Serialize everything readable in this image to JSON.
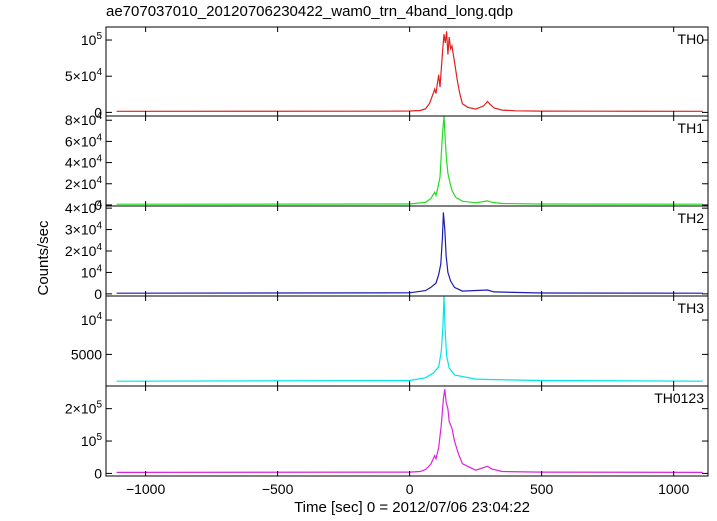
{
  "chart_data": {
    "type": "line",
    "title": "ae707037010_20120706230422_wam0_trn_4band_long.qdp",
    "xlabel": "Time [sec] 0 = 2012/07/06 23:04:22",
    "ylabel": "Counts/sec",
    "xlim": [
      -1150,
      1130
    ],
    "x_ticks": [
      {
        "value": -1000,
        "label": "−1000"
      },
      {
        "value": -500,
        "label": "−500"
      },
      {
        "value": 0,
        "label": "0"
      },
      {
        "value": 500,
        "label": "500"
      },
      {
        "value": 1000,
        "label": "1000"
      }
    ],
    "panels": [
      {
        "name": "TH0",
        "color": "#e02020",
        "ylim": [
          -5000,
          118000
        ],
        "baseline": 1500,
        "y_ticks": [
          {
            "value": 0,
            "label": "0",
            "sup": ""
          },
          {
            "value": 50000,
            "label": "5×10",
            "sup": "4"
          },
          {
            "value": 100000,
            "label": "10",
            "sup": "5"
          }
        ],
        "points": [
          [
            -1110,
            1500
          ],
          [
            -100,
            1600
          ],
          [
            0,
            1900
          ],
          [
            40,
            2600
          ],
          [
            60,
            5000
          ],
          [
            75,
            12000
          ],
          [
            85,
            22000
          ],
          [
            95,
            32000
          ],
          [
            100,
            26000
          ],
          [
            105,
            40000
          ],
          [
            110,
            52000
          ],
          [
            115,
            35000
          ],
          [
            120,
            60000
          ],
          [
            125,
            85000
          ],
          [
            130,
            108000
          ],
          [
            135,
            96000
          ],
          [
            140,
            112000
          ],
          [
            145,
            80000
          ],
          [
            150,
            104000
          ],
          [
            155,
            88000
          ],
          [
            160,
            92000
          ],
          [
            170,
            70000
          ],
          [
            180,
            45000
          ],
          [
            190,
            26000
          ],
          [
            200,
            12000
          ],
          [
            220,
            7000
          ],
          [
            250,
            4500
          ],
          [
            280,
            9000
          ],
          [
            295,
            15000
          ],
          [
            305,
            11000
          ],
          [
            320,
            6000
          ],
          [
            350,
            3200
          ],
          [
            400,
            2200
          ],
          [
            500,
            1800
          ],
          [
            700,
            1600
          ],
          [
            1110,
            1500
          ]
        ]
      },
      {
        "name": "TH1",
        "color": "#22dd22",
        "ylim": [
          -1000,
          84000
        ],
        "baseline": 700,
        "y_ticks": [
          {
            "value": 0,
            "label": "0",
            "sup": ""
          },
          {
            "value": 20000,
            "label": "2×10",
            "sup": "4"
          },
          {
            "value": 40000,
            "label": "4×10",
            "sup": "4"
          },
          {
            "value": 60000,
            "label": "6×10",
            "sup": "4"
          },
          {
            "value": 80000,
            "label": "8×10",
            "sup": "4"
          }
        ],
        "points": [
          [
            -1110,
            700
          ],
          [
            0,
            900
          ],
          [
            60,
            2500
          ],
          [
            80,
            6000
          ],
          [
            95,
            12000
          ],
          [
            100,
            9000
          ],
          [
            108,
            18000
          ],
          [
            115,
            26000
          ],
          [
            120,
            48000
          ],
          [
            125,
            68000
          ],
          [
            130,
            84000
          ],
          [
            135,
            60000
          ],
          [
            140,
            42000
          ],
          [
            145,
            30000
          ],
          [
            150,
            24000
          ],
          [
            160,
            14000
          ],
          [
            175,
            7000
          ],
          [
            200,
            3500
          ],
          [
            250,
            2000
          ],
          [
            295,
            3800
          ],
          [
            310,
            2600
          ],
          [
            350,
            1400
          ],
          [
            500,
            900
          ],
          [
            1110,
            700
          ]
        ]
      },
      {
        "name": "TH2",
        "color": "#1c1cb0",
        "ylim": [
          -1000,
          41000
        ],
        "baseline": 300,
        "y_ticks": [
          {
            "value": 0,
            "label": "0",
            "sup": ""
          },
          {
            "value": 10000,
            "label": "10",
            "sup": "4"
          },
          {
            "value": 20000,
            "label": "2×10",
            "sup": "4"
          },
          {
            "value": 30000,
            "label": "3×10",
            "sup": "4"
          },
          {
            "value": 40000,
            "label": "4×10",
            "sup": "4"
          }
        ],
        "points": [
          [
            -1110,
            300
          ],
          [
            0,
            500
          ],
          [
            60,
            1500
          ],
          [
            80,
            3000
          ],
          [
            100,
            5000
          ],
          [
            110,
            9000
          ],
          [
            118,
            14000
          ],
          [
            124,
            26000
          ],
          [
            128,
            38000
          ],
          [
            133,
            30000
          ],
          [
            138,
            18000
          ],
          [
            145,
            10000
          ],
          [
            155,
            6000
          ],
          [
            170,
            3000
          ],
          [
            200,
            1300
          ],
          [
            295,
            1800
          ],
          [
            320,
            900
          ],
          [
            500,
            400
          ],
          [
            1110,
            300
          ]
        ]
      },
      {
        "name": "TH3",
        "color": "#00e6e6",
        "ylim": [
          400,
          13500
        ],
        "baseline": 1100,
        "y_ticks": [
          {
            "value": 5000,
            "label": "5000",
            "sup": ""
          },
          {
            "value": 10000,
            "label": "10",
            "sup": "4"
          }
        ],
        "points": [
          [
            -1110,
            1100
          ],
          [
            0,
            1200
          ],
          [
            60,
            1600
          ],
          [
            90,
            2300
          ],
          [
            110,
            3200
          ],
          [
            120,
            5500
          ],
          [
            126,
            9000
          ],
          [
            130,
            13500
          ],
          [
            134,
            9000
          ],
          [
            140,
            4800
          ],
          [
            150,
            3000
          ],
          [
            170,
            2000
          ],
          [
            250,
            1400
          ],
          [
            300,
            1350
          ],
          [
            500,
            1200
          ],
          [
            1110,
            1100
          ]
        ]
      },
      {
        "name": "TH0123",
        "color": "#dd22dd",
        "ylim": [
          -8000,
          270000
        ],
        "baseline": 3000,
        "y_ticks": [
          {
            "value": 0,
            "label": "0",
            "sup": ""
          },
          {
            "value": 100000,
            "label": "10",
            "sup": "5"
          },
          {
            "value": 200000,
            "label": "2×10",
            "sup": "5"
          }
        ],
        "points": [
          [
            -1110,
            3000
          ],
          [
            0,
            4000
          ],
          [
            40,
            6000
          ],
          [
            60,
            12000
          ],
          [
            80,
            28000
          ],
          [
            95,
            55000
          ],
          [
            100,
            45000
          ],
          [
            110,
            80000
          ],
          [
            120,
            150000
          ],
          [
            128,
            230000
          ],
          [
            133,
            260000
          ],
          [
            138,
            220000
          ],
          [
            145,
            200000
          ],
          [
            150,
            160000
          ],
          [
            160,
            140000
          ],
          [
            170,
            100000
          ],
          [
            185,
            60000
          ],
          [
            200,
            30000
          ],
          [
            250,
            10000
          ],
          [
            295,
            22000
          ],
          [
            310,
            14000
          ],
          [
            350,
            6000
          ],
          [
            500,
            4000
          ],
          [
            1110,
            3000
          ]
        ]
      }
    ]
  }
}
